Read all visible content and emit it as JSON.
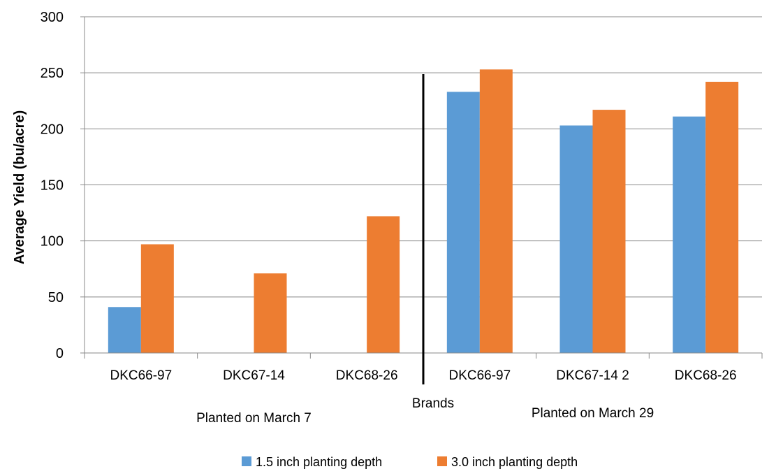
{
  "chart_data": {
    "type": "bar",
    "categories": [
      "DKC66-97",
      "DKC67-14",
      "DKC68-26",
      "DKC66-97",
      "DKC67-14 2",
      "DKC68-26"
    ],
    "groups": [
      {
        "label": "Planted on March 7",
        "categories": [
          0,
          1,
          2
        ]
      },
      {
        "label": "Planted on March 29",
        "categories": [
          3,
          4,
          5
        ]
      }
    ],
    "series": [
      {
        "name": "1.5 inch planting depth",
        "color": "#5b9bd5",
        "values": [
          41,
          0,
          0,
          233,
          203,
          211
        ]
      },
      {
        "name": "3.0 inch planting depth",
        "color": "#ed7d31",
        "values": [
          97,
          71,
          122,
          253,
          217,
          242
        ]
      }
    ],
    "xlabel": "Brands",
    "ylabel": "Average Yield (bu/acre)",
    "ylim": [
      0,
      300
    ],
    "yticks": [
      0,
      50,
      100,
      150,
      200,
      250,
      300
    ],
    "grid": true,
    "legend_position": "bottom",
    "divider_after_category": 2
  }
}
